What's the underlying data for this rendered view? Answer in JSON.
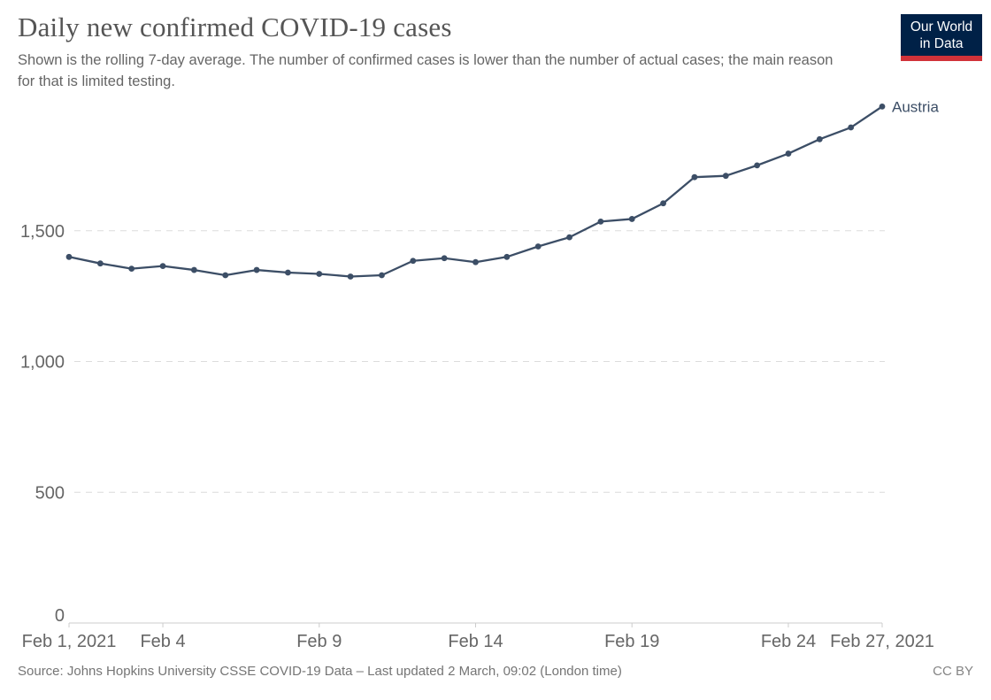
{
  "header": {
    "title": "Daily new confirmed COVID-19 cases",
    "subtitle": "Shown is the rolling 7-day average. The number of confirmed cases is lower than the number of actual cases; the main reason for that is limited testing.",
    "logo": {
      "line1": "Our World",
      "line2": "in Data",
      "bg_color": "#002147",
      "accent_color": "#D13239"
    }
  },
  "chart_data": {
    "type": "line",
    "title": "Daily new confirmed COVID-19 cases",
    "xlabel": "",
    "ylabel": "",
    "x": [
      "Feb 1, 2021",
      "Feb 2, 2021",
      "Feb 3, 2021",
      "Feb 4, 2021",
      "Feb 5, 2021",
      "Feb 6, 2021",
      "Feb 7, 2021",
      "Feb 8, 2021",
      "Feb 9, 2021",
      "Feb 10, 2021",
      "Feb 11, 2021",
      "Feb 12, 2021",
      "Feb 13, 2021",
      "Feb 14, 2021",
      "Feb 15, 2021",
      "Feb 16, 2021",
      "Feb 17, 2021",
      "Feb 18, 2021",
      "Feb 19, 2021",
      "Feb 20, 2021",
      "Feb 21, 2021",
      "Feb 22, 2021",
      "Feb 23, 2021",
      "Feb 24, 2021",
      "Feb 25, 2021",
      "Feb 26, 2021",
      "Feb 27, 2021"
    ],
    "series": [
      {
        "name": "Austria",
        "color": "#3C4E66",
        "values": [
          1400,
          1375,
          1355,
          1365,
          1350,
          1330,
          1350,
          1340,
          1335,
          1325,
          1330,
          1385,
          1395,
          1380,
          1400,
          1440,
          1475,
          1535,
          1545,
          1605,
          1705,
          1710,
          1750,
          1795,
          1850,
          1895,
          1975
        ]
      }
    ],
    "ylim": [
      0,
      2000
    ],
    "yticks": [
      0,
      500,
      1000,
      1500
    ],
    "xticks": [
      {
        "index": 0,
        "label": "Feb 1, 2021"
      },
      {
        "index": 3,
        "label": "Feb 4"
      },
      {
        "index": 8,
        "label": "Feb 9"
      },
      {
        "index": 13,
        "label": "Feb 14"
      },
      {
        "index": 18,
        "label": "Feb 19"
      },
      {
        "index": 23,
        "label": "Feb 24"
      },
      {
        "index": 26,
        "label": "Feb 27, 2021"
      }
    ],
    "grid": "horizontal-dashed",
    "legend_position": "end-of-line-label",
    "grid_color": "#dcdcdc",
    "axis_color": "#cccccc"
  },
  "footer": {
    "source": "Source: Johns Hopkins University CSSE COVID-19 Data – Last updated 2 March, 09:02 (London time)",
    "license": "CC BY"
  }
}
